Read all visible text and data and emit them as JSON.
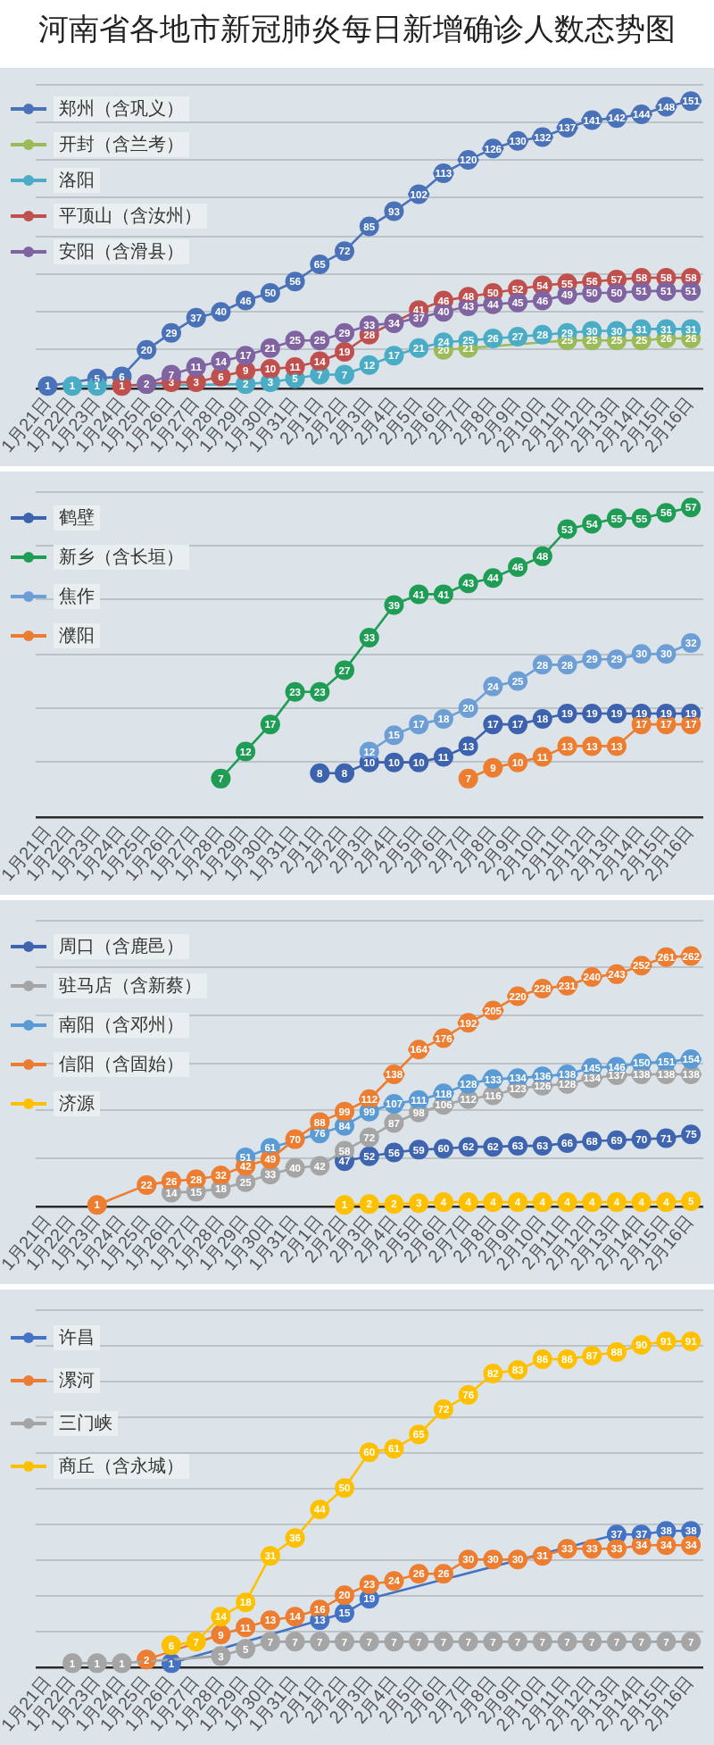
{
  "chart_data": [
    {
      "type": "line",
      "title": "河南省各地市新冠肺炎每日新增确诊人数态势图",
      "categories": [
        "1月21日",
        "1月22日",
        "1月23日",
        "1月24日",
        "1月25日",
        "1月26日",
        "1月27日",
        "1月28日",
        "1月29日",
        "1月30日",
        "1月31日",
        "2月1日",
        "2月2日",
        "2月3日",
        "2月4日",
        "2月5日",
        "2月6日",
        "2月7日",
        "2月8日",
        "2月9日",
        "2月10日",
        "2月11日",
        "2月12日",
        "2月13日",
        "2月14日",
        "2月15日",
        "2月16日"
      ],
      "series": [
        {
          "name": "郑州（含巩义）",
          "color": "#4a72b8",
          "values": [
            1,
            null,
            5,
            6,
            20,
            29,
            37,
            40,
            46,
            50,
            56,
            65,
            72,
            85,
            93,
            102,
            113,
            120,
            126,
            130,
            132,
            137,
            141,
            142,
            144,
            148,
            151
          ]
        },
        {
          "name": "开封（含兰考）",
          "color": "#9bbb59",
          "values": [
            null,
            null,
            null,
            null,
            null,
            null,
            null,
            null,
            null,
            null,
            null,
            null,
            null,
            null,
            null,
            null,
            20,
            21,
            null,
            null,
            null,
            25,
            25,
            25,
            25,
            26,
            26
          ]
        },
        {
          "name": "洛阳",
          "color": "#4bacc6",
          "values": [
            null,
            1,
            1,
            null,
            null,
            null,
            null,
            null,
            2,
            3,
            5,
            7,
            7,
            12,
            17,
            21,
            24,
            25,
            26,
            27,
            28,
            29,
            30,
            30,
            31,
            31,
            31
          ]
        },
        {
          "name": "平顶山（含汝州）",
          "color": "#c0504d",
          "values": [
            null,
            null,
            null,
            1,
            null,
            3,
            3,
            6,
            9,
            10,
            11,
            14,
            19,
            28,
            null,
            41,
            46,
            48,
            50,
            52,
            54,
            55,
            56,
            57,
            58,
            58,
            58
          ]
        },
        {
          "name": "安阳（含滑县）",
          "color": "#8064a2",
          "values": [
            null,
            null,
            null,
            null,
            2,
            7,
            11,
            14,
            17,
            21,
            25,
            25,
            29,
            33,
            34,
            37,
            40,
            43,
            44,
            45,
            46,
            49,
            50,
            50,
            51,
            51,
            51
          ]
        }
      ],
      "ylim": [
        0,
        160
      ],
      "yticks": [
        {
          "value": 0,
          "label": null
        },
        {
          "value": 20,
          "label": null
        },
        {
          "value": 40,
          "label": null
        },
        {
          "value": 60,
          "label": null
        },
        {
          "value": 80,
          "label": null
        },
        {
          "value": 100,
          "label": null
        },
        {
          "value": 120,
          "label": null
        },
        {
          "value": 140,
          "label": null
        },
        {
          "value": 160,
          "label": null
        }
      ],
      "tick_labels": "x",
      "grid": "y",
      "legend": "top left",
      "marker": "circle",
      "line_style": "solid",
      "data_labels": true
    },
    {
      "type": "line",
      "categories": [
        "1月21日",
        "1月22日",
        "1月23日",
        "1月24日",
        "1月25日",
        "1月26日",
        "1月27日",
        "1月28日",
        "1月29日",
        "1月30日",
        "1月31日",
        "2月1日",
        "2月2日",
        "2月3日",
        "2月4日",
        "2月5日",
        "2月6日",
        "2月7日",
        "2月8日",
        "2月9日",
        "2月10日",
        "2月11日",
        "2月12日",
        "2月13日",
        "2月14日",
        "2月15日",
        "2月16日"
      ],
      "series": [
        {
          "name": "鹤壁",
          "color": "#3d62ae",
          "values": [
            null,
            null,
            null,
            null,
            null,
            null,
            null,
            null,
            null,
            null,
            null,
            8,
            8,
            10,
            10,
            10,
            11,
            13,
            17,
            17,
            18,
            19,
            19,
            19,
            19,
            19,
            19
          ]
        },
        {
          "name": "新乡（含长垣）",
          "color": "#1f9d55",
          "values": [
            null,
            null,
            null,
            null,
            null,
            null,
            null,
            7,
            12,
            17,
            23,
            23,
            27,
            33,
            39,
            41,
            41,
            43,
            44,
            46,
            48,
            53,
            54,
            55,
            55,
            56,
            57
          ]
        },
        {
          "name": "焦作",
          "color": "#6d9ed6",
          "values": [
            null,
            null,
            null,
            null,
            null,
            null,
            null,
            null,
            null,
            null,
            null,
            null,
            null,
            12,
            15,
            17,
            18,
            20,
            24,
            25,
            28,
            28,
            29,
            29,
            30,
            30,
            32
          ]
        },
        {
          "name": "濮阳",
          "color": "#ed7d31",
          "values": [
            null,
            null,
            null,
            null,
            null,
            null,
            null,
            null,
            null,
            null,
            null,
            null,
            null,
            null,
            null,
            null,
            null,
            7,
            9,
            10,
            11,
            13,
            13,
            13,
            17,
            17,
            17
          ]
        }
      ],
      "ylim": [
        0,
        60
      ],
      "yticks": [
        {
          "value": 0,
          "label": null
        },
        {
          "value": 10,
          "label": null
        },
        {
          "value": 20,
          "label": null
        },
        {
          "value": 30,
          "label": null
        },
        {
          "value": 40,
          "label": null
        },
        {
          "value": 50,
          "label": null
        },
        {
          "value": 60,
          "label": null
        }
      ],
      "tick_labels": "x",
      "grid": "y",
      "legend": "top left",
      "marker": "circle",
      "line_style": "solid",
      "data_labels": true
    },
    {
      "type": "line",
      "categories": [
        "1月21日",
        "1月22日",
        "1月23日",
        "1月24日",
        "1月25日",
        "1月26日",
        "1月27日",
        "1月28日",
        "1月29日",
        "1月30日",
        "1月31日",
        "2月1日",
        "2月2日",
        "2月3日",
        "2月4日",
        "2月5日",
        "2月6日",
        "2月7日",
        "2月8日",
        "2月9日",
        "2月10日",
        "2月11日",
        "2月12日",
        "2月13日",
        "2月14日",
        "2月15日",
        "2月16日"
      ],
      "series": [
        {
          "name": "周口（含鹿邑）",
          "color": "#3f65b0",
          "values": [
            null,
            null,
            null,
            null,
            null,
            null,
            null,
            null,
            null,
            null,
            null,
            null,
            47,
            52,
            56,
            59,
            60,
            62,
            62,
            63,
            63,
            66,
            68,
            69,
            70,
            71,
            75
          ]
        },
        {
          "name": "驻马店（含新蔡）",
          "color": "#a5a5a5",
          "values": [
            null,
            null,
            null,
            null,
            null,
            14,
            15,
            18,
            25,
            33,
            40,
            42,
            58,
            72,
            87,
            98,
            106,
            112,
            116,
            123,
            126,
            128,
            134,
            137,
            138,
            138,
            138
          ]
        },
        {
          "name": "南阳（含邓州）",
          "color": "#5b9bd5",
          "values": [
            null,
            null,
            null,
            null,
            null,
            null,
            null,
            null,
            51,
            61,
            null,
            76,
            84,
            99,
            107,
            111,
            118,
            128,
            133,
            134,
            136,
            138,
            145,
            146,
            150,
            151,
            154
          ]
        },
        {
          "name": "信阳（含固始）",
          "color": "#ed7d31",
          "values": [
            null,
            null,
            1,
            null,
            22,
            26,
            28,
            32,
            42,
            49,
            70,
            88,
            99,
            112,
            138,
            164,
            176,
            192,
            205,
            220,
            228,
            231,
            240,
            243,
            252,
            261,
            262
          ]
        },
        {
          "name": "济源",
          "color": "#ffc000",
          "values": [
            null,
            null,
            null,
            null,
            null,
            null,
            null,
            null,
            null,
            null,
            null,
            null,
            1,
            2,
            2,
            3,
            4,
            4,
            4,
            4,
            4,
            4,
            4,
            4,
            4,
            4,
            5
          ]
        }
      ],
      "ylim": [
        0,
        300
      ],
      "yticks": [
        {
          "value": 0,
          "label": null
        },
        {
          "value": 50,
          "label": null
        },
        {
          "value": 100,
          "label": null
        },
        {
          "value": 150,
          "label": null
        },
        {
          "value": 200,
          "label": null
        },
        {
          "value": 250,
          "label": null
        },
        {
          "value": 300,
          "label": null
        }
      ],
      "tick_labels": "x",
      "grid": "y",
      "legend": "top left",
      "marker": "circle",
      "line_style": "solid",
      "data_labels": true
    },
    {
      "type": "line",
      "categories": [
        "1月21日",
        "1月22日",
        "1月23日",
        "1月24日",
        "1月25日",
        "1月26日",
        "1月27日",
        "1月28日",
        "1月29日",
        "1月30日",
        "1月31日",
        "2月1日",
        "2月2日",
        "2月3日",
        "2月4日",
        "2月5日",
        "2月6日",
        "2月7日",
        "2月8日",
        "2月9日",
        "2月10日",
        "2月11日",
        "2月12日",
        "2月13日",
        "2月14日",
        "2月15日",
        "2月16日"
      ],
      "series": [
        {
          "name": "许昌",
          "color": "#4472c4",
          "values": [
            null,
            null,
            null,
            null,
            null,
            1,
            null,
            null,
            null,
            null,
            null,
            13,
            15,
            19,
            null,
            null,
            null,
            null,
            null,
            null,
            null,
            null,
            null,
            37,
            37,
            38,
            38
          ]
        },
        {
          "name": "漯河",
          "color": "#ed7d31",
          "values": [
            null,
            null,
            null,
            null,
            2,
            null,
            null,
            9,
            11,
            13,
            14,
            16,
            20,
            23,
            24,
            26,
            26,
            30,
            30,
            30,
            31,
            33,
            33,
            33,
            34,
            34,
            34
          ]
        },
        {
          "name": "三门峡",
          "color": "#a5a5a5",
          "values": [
            null,
            1,
            1,
            1,
            null,
            null,
            null,
            3,
            5,
            7,
            7,
            7,
            7,
            7,
            7,
            7,
            7,
            7,
            7,
            7,
            7,
            7,
            7,
            7,
            7,
            7,
            7
          ]
        },
        {
          "name": "商丘（含永城）",
          "color": "#ffc000",
          "values": [
            null,
            null,
            null,
            null,
            null,
            6,
            7,
            14,
            18,
            31,
            36,
            44,
            50,
            60,
            61,
            65,
            72,
            76,
            82,
            83,
            86,
            86,
            87,
            88,
            90,
            91,
            91
          ]
        }
      ],
      "ylim": [
        0,
        100
      ],
      "yticks": [
        {
          "value": 0,
          "label": null
        },
        {
          "value": 10,
          "label": null
        },
        {
          "value": 20,
          "label": null
        },
        {
          "value": 30,
          "label": null
        },
        {
          "value": 40,
          "label": null
        },
        {
          "value": 50,
          "label": null
        },
        {
          "value": 60,
          "label": null
        },
        {
          "value": 70,
          "label": null
        },
        {
          "value": 80,
          "label": null
        },
        {
          "value": 90,
          "label": null
        },
        {
          "value": 100,
          "label": null
        }
      ],
      "tick_labels": "x",
      "grid": "y",
      "legend": "top left",
      "marker": "circle",
      "line_style": "solid",
      "data_labels": true
    }
  ]
}
